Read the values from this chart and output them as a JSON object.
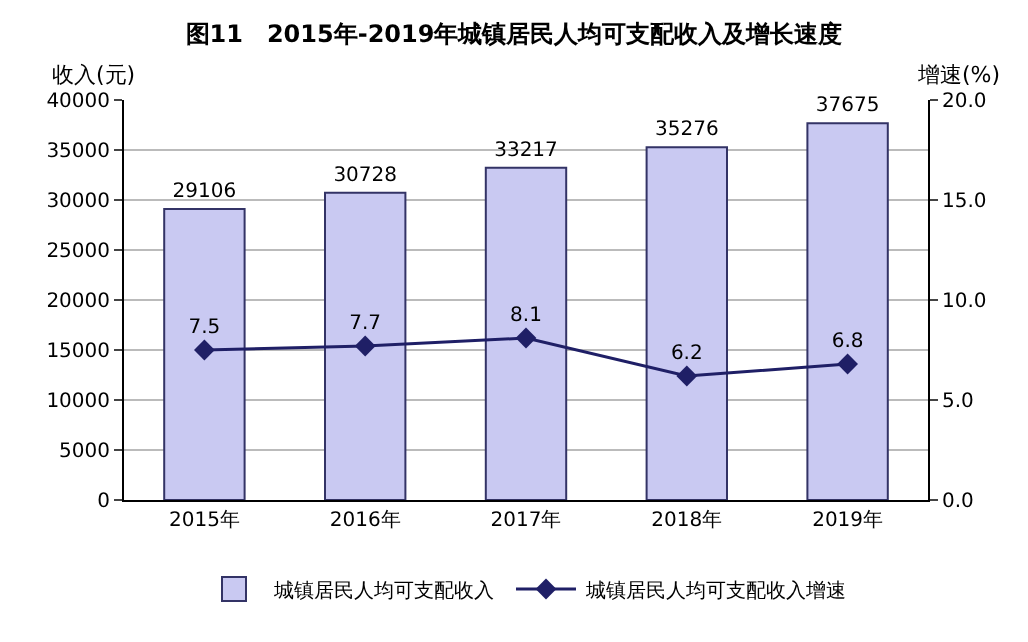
{
  "chart_data": {
    "type": "bar",
    "title": "图11　2015年-2019年城镇居民人均可支配收入及增长速度",
    "ylabel": "收入(元)",
    "y2label": "增速(%)",
    "categories": [
      "2015年",
      "2016年",
      "2017年",
      "2018年",
      "2019年"
    ],
    "series": [
      {
        "name": "城镇居民人均可支配收入",
        "color": "#c9c9f2",
        "values": [
          29106,
          30728,
          33217,
          35276,
          37675
        ]
      },
      {
        "name": "城镇居民人均可支配收入增速",
        "type": "line",
        "axis": "y2",
        "color": "#1f1f66",
        "marker": "diamond",
        "values": [
          7.5,
          7.7,
          8.1,
          6.2,
          6.8
        ]
      }
    ],
    "ylim": [
      0,
      40000
    ],
    "yticks": [
      0,
      5000,
      10000,
      15000,
      20000,
      25000,
      30000,
      35000,
      40000
    ],
    "y2lim": [
      0,
      20
    ],
    "y2ticks": [
      {
        "value": 0,
        "label": "0.0"
      },
      {
        "value": 5,
        "label": "5.0"
      },
      {
        "value": 10,
        "label": "10.0"
      },
      {
        "value": 15,
        "label": "15.0"
      },
      {
        "value": 20,
        "label": "20.0"
      }
    ],
    "grid": "y",
    "legend": "bottom",
    "data_labels": true
  }
}
